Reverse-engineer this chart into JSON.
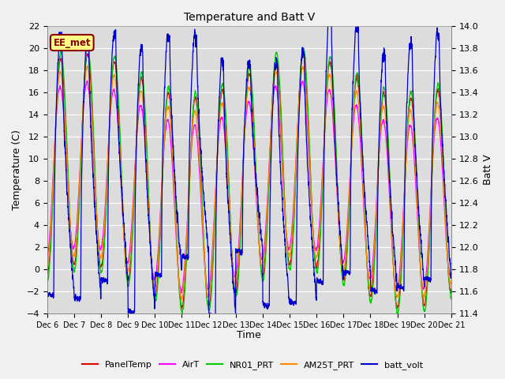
{
  "title": "Temperature and Batt V",
  "ylabel_left": "Temperature (C)",
  "ylabel_right": "Batt V",
  "xlabel": "Time",
  "annotation": "EE_met",
  "left_ylim": [
    -4,
    22
  ],
  "right_ylim": [
    11.4,
    14.0
  ],
  "left_yticks": [
    -4,
    -2,
    0,
    2,
    4,
    6,
    8,
    10,
    12,
    14,
    16,
    18,
    20,
    22
  ],
  "right_ytick_labels": [
    "11.4",
    "11.6",
    "11.8",
    "12.0",
    "12.2",
    "12.4",
    "12.6",
    "12.8",
    "13.0",
    "13.2",
    "13.4",
    "13.6",
    "13.8",
    "14.0"
  ],
  "x_tick_labels": [
    "Dec 6",
    "Dec 7",
    "Dec 8",
    "Dec 9",
    "Dec 10",
    "Dec 11",
    "Dec 12",
    "Dec 13",
    "Dec 14",
    "Dec 15",
    "Dec 16",
    "Dec 17",
    "Dec 18",
    "Dec 19",
    "Dec 20",
    "Dec 21"
  ],
  "legend_entries": [
    "PanelTemp",
    "AirT",
    "NR01_PRT",
    "AM25T_PRT",
    "batt_volt"
  ],
  "legend_colors": [
    "#dd0000",
    "#ff00ff",
    "#00cc00",
    "#ff8800",
    "#0000cc"
  ],
  "bg_color": "#dcdcdc",
  "fig_color": "#f0f0f0",
  "days": 15,
  "n_points_per_day": 288,
  "title_fontsize": 10,
  "label_fontsize": 9,
  "tick_fontsize": 8,
  "xtick_fontsize": 7,
  "linewidth": 0.9
}
